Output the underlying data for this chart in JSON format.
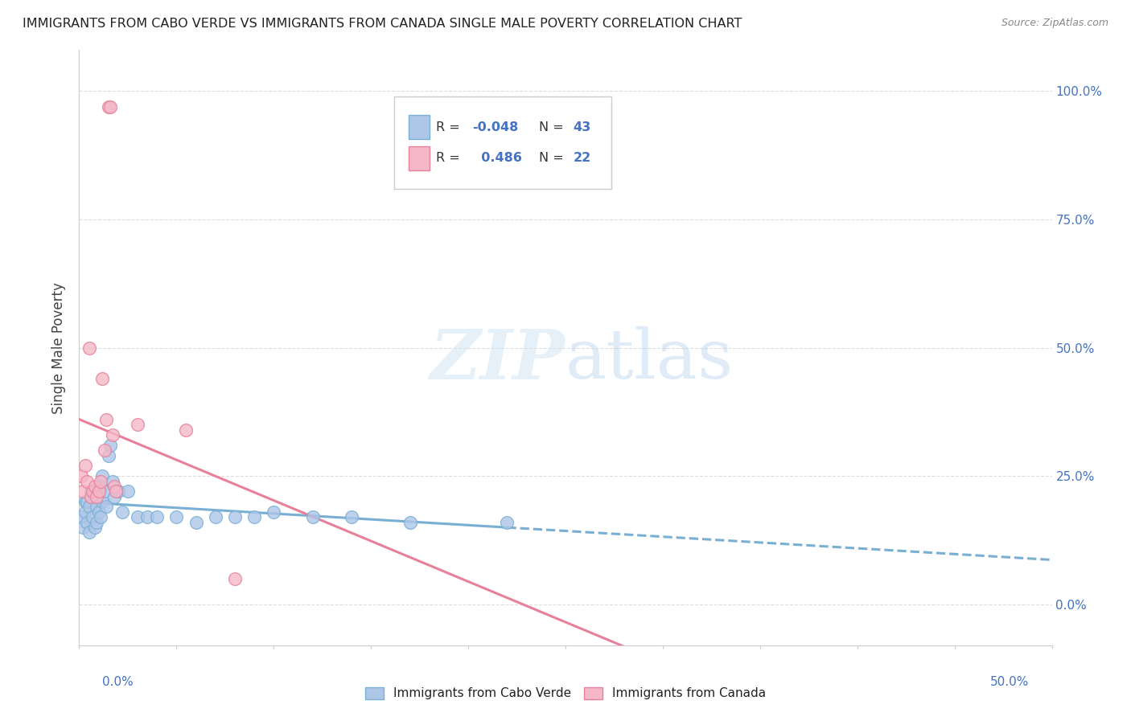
{
  "title": "IMMIGRANTS FROM CABO VERDE VS IMMIGRANTS FROM CANADA SINGLE MALE POVERTY CORRELATION CHART",
  "source": "Source: ZipAtlas.com",
  "ylabel": "Single Male Poverty",
  "ytick_labels": [
    "0.0%",
    "25.0%",
    "50.0%",
    "75.0%",
    "100.0%"
  ],
  "ytick_values": [
    0,
    0.25,
    0.5,
    0.75,
    1.0
  ],
  "xlim": [
    0,
    0.5
  ],
  "ylim": [
    -0.08,
    1.08
  ],
  "legend_label1": "Immigrants from Cabo Verde",
  "legend_label2": "Immigrants from Canada",
  "r1": -0.048,
  "n1": 43,
  "r2": 0.486,
  "n2": 22,
  "color1": "#aec6e8",
  "color2": "#f4b8c8",
  "edge_color1": "#7aafd4",
  "edge_color2": "#e8809a",
  "line_color1": "#7aafd4",
  "line_color2": "#e8809a",
  "cabo_verde_x": [
    0.001,
    0.002,
    0.003,
    0.003,
    0.004,
    0.004,
    0.005,
    0.005,
    0.006,
    0.007,
    0.007,
    0.008,
    0.008,
    0.009,
    0.009,
    0.01,
    0.01,
    0.011,
    0.011,
    0.012,
    0.012,
    0.013,
    0.014,
    0.015,
    0.016,
    0.017,
    0.018,
    0.02,
    0.022,
    0.025,
    0.03,
    0.035,
    0.04,
    0.05,
    0.06,
    0.07,
    0.08,
    0.09,
    0.1,
    0.12,
    0.14,
    0.17,
    0.22
  ],
  "cabo_verde_y": [
    0.17,
    0.15,
    0.2,
    0.18,
    0.16,
    0.2,
    0.14,
    0.19,
    0.22,
    0.17,
    0.22,
    0.15,
    0.21,
    0.16,
    0.19,
    0.22,
    0.18,
    0.17,
    0.23,
    0.2,
    0.25,
    0.22,
    0.19,
    0.29,
    0.31,
    0.24,
    0.21,
    0.22,
    0.18,
    0.22,
    0.17,
    0.17,
    0.17,
    0.17,
    0.16,
    0.17,
    0.17,
    0.17,
    0.18,
    0.17,
    0.17,
    0.16,
    0.16
  ],
  "canada_x": [
    0.001,
    0.002,
    0.003,
    0.004,
    0.005,
    0.006,
    0.007,
    0.008,
    0.009,
    0.01,
    0.011,
    0.012,
    0.013,
    0.014,
    0.015,
    0.016,
    0.017,
    0.018,
    0.019,
    0.03,
    0.055,
    0.08
  ],
  "canada_y": [
    0.25,
    0.22,
    0.27,
    0.24,
    0.5,
    0.21,
    0.22,
    0.23,
    0.21,
    0.22,
    0.24,
    0.44,
    0.3,
    0.36,
    0.97,
    0.97,
    0.33,
    0.23,
    0.22,
    0.35,
    0.34,
    0.05
  ],
  "watermark_zip": "ZIP",
  "watermark_atlas": "atlas",
  "background_color": "#ffffff",
  "grid_color": "#dddddd",
  "title_color": "#222222",
  "axis_label_color": "#4472c4",
  "ylabel_color": "#444444"
}
